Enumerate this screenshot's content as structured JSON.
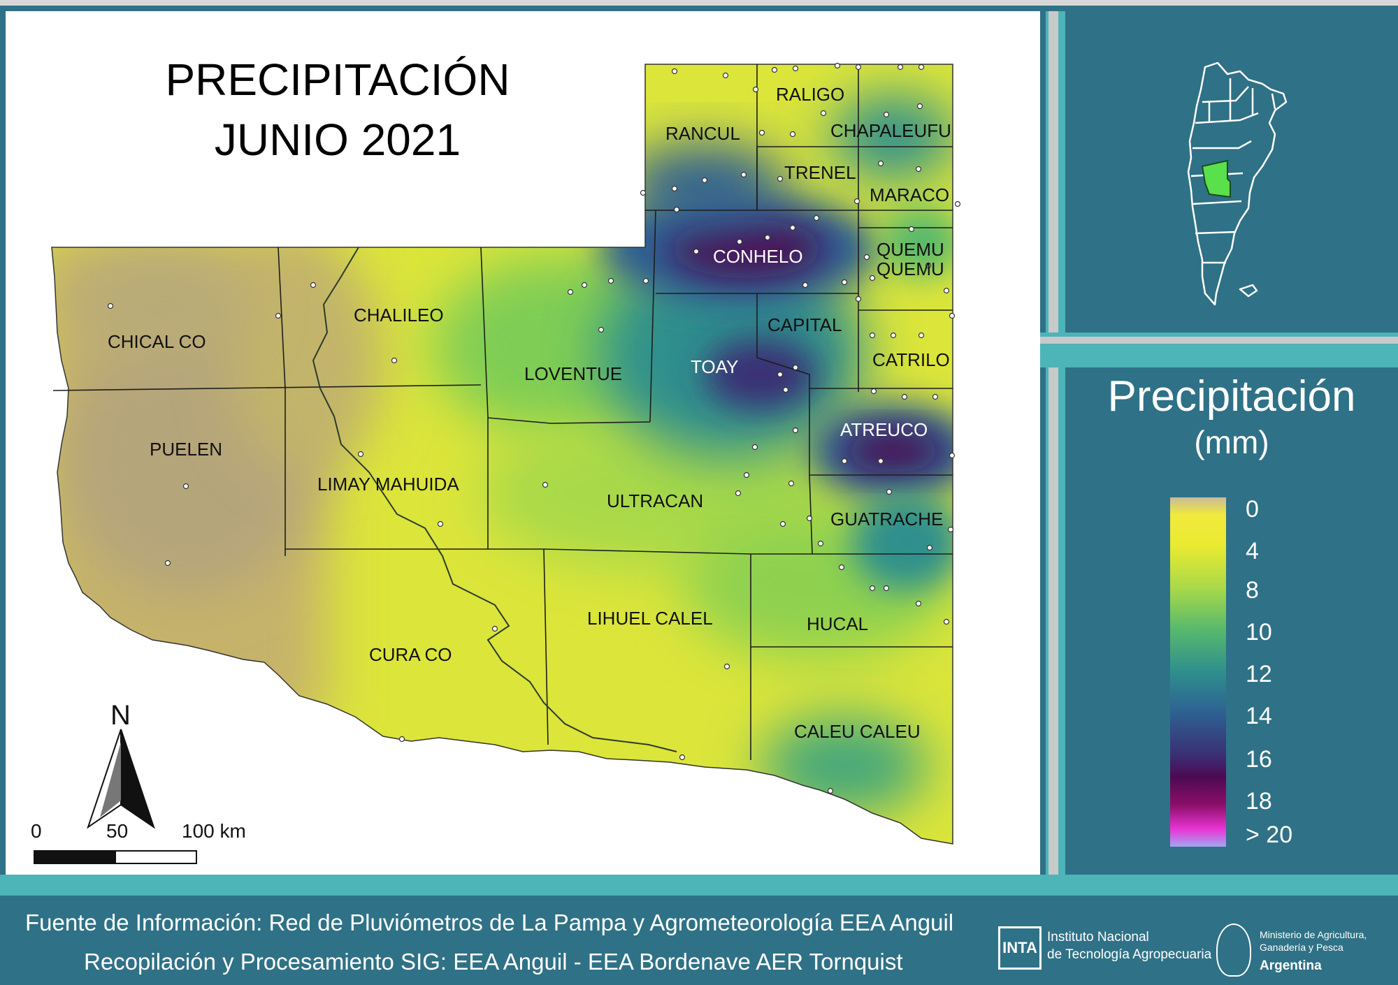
{
  "map": {
    "title_line1": "PRECIPITACIÓN",
    "title_line2": "JUNIO 2021",
    "departments": [
      {
        "name": "RALIGO"
      },
      {
        "name": "RANCUL"
      },
      {
        "name": "CHAPALEUFU"
      },
      {
        "name": "TRENEL"
      },
      {
        "name": "MARACO"
      },
      {
        "name": "CONHELO"
      },
      {
        "name": "QUEMU"
      },
      {
        "name": "QUEMU"
      },
      {
        "name": "CHALILEO"
      },
      {
        "name": "CHICAL CO"
      },
      {
        "name": "CAPITAL"
      },
      {
        "name": "LOVENTUE"
      },
      {
        "name": "TOAY"
      },
      {
        "name": "CATRILO"
      },
      {
        "name": "ATREUCO"
      },
      {
        "name": "PUELEN"
      },
      {
        "name": "LIMAY MAHUIDA"
      },
      {
        "name": "ULTRACAN"
      },
      {
        "name": "GUATRACHE"
      },
      {
        "name": "LIHUEL CALEL"
      },
      {
        "name": "HUCAL"
      },
      {
        "name": "CURA CO"
      },
      {
        "name": "CALEU CALEU"
      }
    ],
    "north_label": "N",
    "scale": {
      "labels": [
        "0",
        "50",
        "100 km"
      ]
    }
  },
  "legend": {
    "title": "Precipitación",
    "unit": "(mm)",
    "ticks": [
      "0",
      "4",
      "8",
      "10",
      "12",
      "14",
      "16",
      "18",
      "> 20"
    ],
    "colors": [
      "#c9b99a",
      "#f1ea3d",
      "#a9d949",
      "#57b86d",
      "#2f8f8d",
      "#2e5f92",
      "#3a2e74",
      "#4c0a52",
      "#e934d4",
      "#a3a6f2"
    ]
  },
  "credits": {
    "line1": "Fuente de Información: Red de Pluviómetros de La Pampa y Agrometeorología EEA Anguil",
    "line2": "Recopilación y Procesamiento SIG: EEA Anguil - EEA Bordenave AER Tornquist"
  },
  "logos": {
    "inta_acronym": "INTA",
    "inta_name_line1": "Instituto Nacional",
    "inta_name_line2": "de Tecnología Agropecuaria",
    "ministry_line1": "Ministerio de Agricultura,",
    "ministry_line2": "Ganadería y Pesca",
    "ministry_country": "Argentina"
  }
}
